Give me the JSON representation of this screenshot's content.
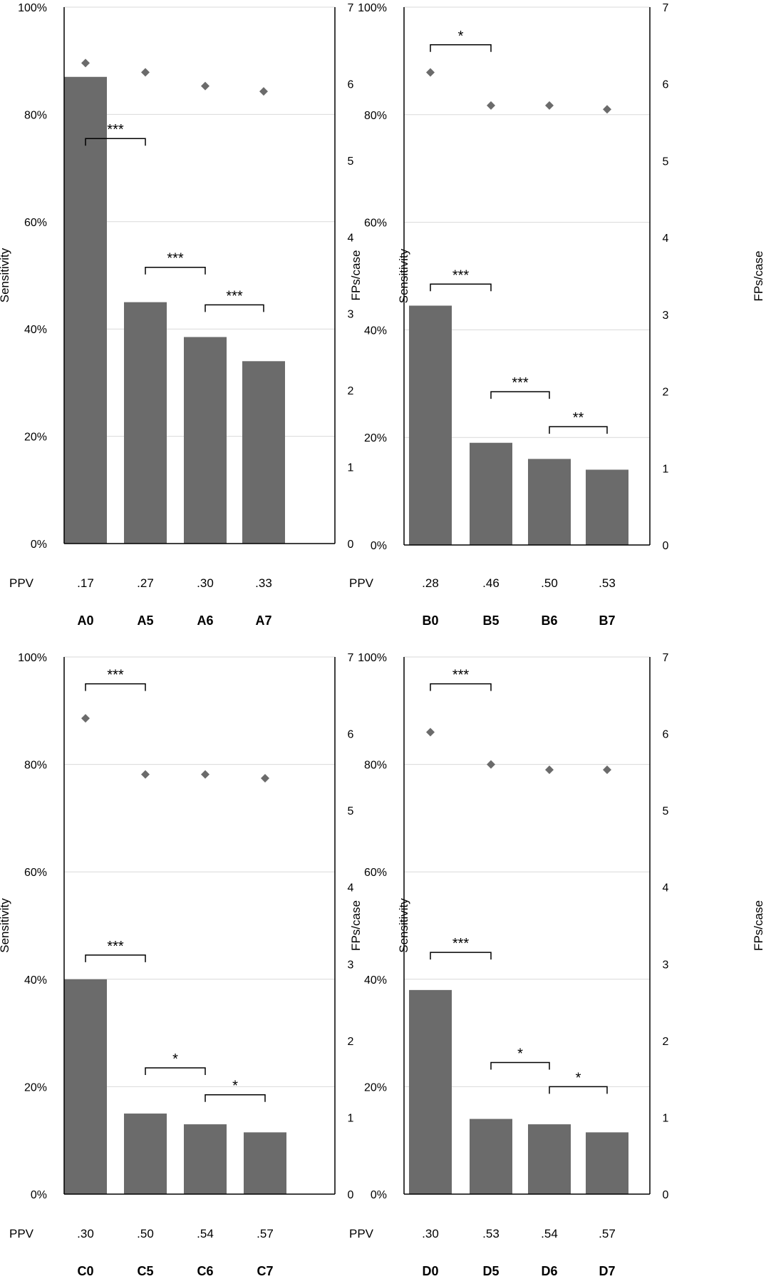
{
  "colors": {
    "bar": "#6b6b6b",
    "marker": "#6b6b6b",
    "grid": "#d9d9d9",
    "axis": "#000000",
    "text": "#000000"
  },
  "chart_data": [
    {
      "type": "bar",
      "panel": "A",
      "categories": [
        "A0",
        "A5",
        "A6",
        "A7"
      ],
      "series": [
        {
          "name": "Sensitivity",
          "chart": "bar",
          "axis": "left",
          "values": [
            87,
            45,
            38.5,
            34
          ]
        },
        {
          "name": "FPs/case",
          "chart": "scatter",
          "axis": "right",
          "values": [
            6.27,
            6.15,
            5.97,
            5.9
          ]
        }
      ],
      "ylabel": "Sensitivity",
      "ylabel_right": "FPs/case",
      "ylim": [
        0,
        100
      ],
      "ylim_right": [
        0,
        7
      ],
      "yticks": [
        "0%",
        "20%",
        "40%",
        "60%",
        "80%",
        "100%"
      ],
      "yticks_right": [
        "0",
        "1",
        "2",
        "3",
        "4",
        "5",
        "6",
        "7"
      ],
      "grid": true,
      "ppv_label": "PPV",
      "ppv": [
        ".17",
        ".27",
        ".30",
        ".33"
      ],
      "significance": [
        {
          "from": 0,
          "to": 1,
          "label": "***",
          "level_pct": 75.5
        },
        {
          "from": 1,
          "to": 2,
          "label": "***",
          "level_pct": 51.5
        },
        {
          "from": 2,
          "to": 3,
          "label": "***",
          "level_pct": 44.5
        }
      ]
    },
    {
      "type": "bar",
      "panel": "B",
      "categories": [
        "B0",
        "B5",
        "B6",
        "B7"
      ],
      "series": [
        {
          "name": "Sensitivity",
          "chart": "bar",
          "axis": "left",
          "values": [
            44.5,
            19,
            16,
            14
          ]
        },
        {
          "name": "FPs/case",
          "chart": "scatter",
          "axis": "right",
          "values": [
            6.15,
            5.72,
            5.72,
            5.67
          ]
        }
      ],
      "ylabel": "Sensitivity",
      "ylabel_right": "FPs/case",
      "ylim": [
        0,
        100
      ],
      "ylim_right": [
        0,
        7
      ],
      "yticks": [
        "0%",
        "20%",
        "40%",
        "60%",
        "80%",
        "100%"
      ],
      "yticks_right": [
        "0",
        "1",
        "2",
        "3",
        "4",
        "5",
        "6",
        "7"
      ],
      "grid": true,
      "ppv_label": "PPV",
      "ppv": [
        ".28",
        ".46",
        ".50",
        ".53"
      ],
      "significance": [
        {
          "from": 0,
          "to": 1,
          "label": "*",
          "level_pct": 93
        },
        {
          "from": 0,
          "to": 1,
          "label": "***",
          "level_pct": 48.5
        },
        {
          "from": 1,
          "to": 2,
          "label": "***",
          "level_pct": 28.5
        },
        {
          "from": 2,
          "to": 3,
          "label": "**",
          "level_pct": 22
        }
      ]
    },
    {
      "type": "bar",
      "panel": "C",
      "categories": [
        "C0",
        "C5",
        "C6",
        "C7"
      ],
      "series": [
        {
          "name": "Sensitivity",
          "chart": "bar",
          "axis": "left",
          "values": [
            40,
            15,
            13,
            11.5
          ]
        },
        {
          "name": "FPs/case",
          "chart": "scatter",
          "axis": "right",
          "values": [
            6.2,
            5.47,
            5.47,
            5.42
          ]
        }
      ],
      "ylabel": "Sensitivity",
      "ylabel_right": "FPs/case",
      "ylim": [
        0,
        100
      ],
      "ylim_right": [
        0,
        7
      ],
      "yticks": [
        "0%",
        "20%",
        "40%",
        "60%",
        "80%",
        "100%"
      ],
      "yticks_right": [
        "0",
        "1",
        "2",
        "3",
        "4",
        "5",
        "6",
        "7"
      ],
      "grid": true,
      "ppv_label": "PPV",
      "ppv": [
        ".30",
        ".50",
        ".54",
        ".57"
      ],
      "significance": [
        {
          "from": 0,
          "to": 1,
          "label": "***",
          "level_pct": 95
        },
        {
          "from": 0,
          "to": 1,
          "label": "***",
          "level_pct": 44.5
        },
        {
          "from": 1,
          "to": 2,
          "label": "*",
          "level_pct": 23.5
        },
        {
          "from": 2,
          "to": 3,
          "label": "*",
          "level_pct": 18.5
        }
      ]
    },
    {
      "type": "bar",
      "panel": "D",
      "categories": [
        "D0",
        "D5",
        "D6",
        "D7"
      ],
      "series": [
        {
          "name": "Sensitivity",
          "chart": "bar",
          "axis": "left",
          "values": [
            38,
            14,
            13,
            11.5
          ]
        },
        {
          "name": "FPs/case",
          "chart": "scatter",
          "axis": "right",
          "values": [
            6.02,
            5.6,
            5.53,
            5.53
          ]
        }
      ],
      "ylabel": "Sensitivity",
      "ylabel_right": "FPs/case",
      "ylim": [
        0,
        100
      ],
      "ylim_right": [
        0,
        7
      ],
      "yticks": [
        "0%",
        "20%",
        "40%",
        "60%",
        "80%",
        "100%"
      ],
      "yticks_right": [
        "0",
        "1",
        "2",
        "3",
        "4",
        "5",
        "6",
        "7"
      ],
      "grid": true,
      "ppv_label": "PPV",
      "ppv": [
        ".30",
        ".53",
        ".54",
        ".57"
      ],
      "significance": [
        {
          "from": 0,
          "to": 1,
          "label": "***",
          "level_pct": 95
        },
        {
          "from": 0,
          "to": 1,
          "label": "***",
          "level_pct": 45
        },
        {
          "from": 1,
          "to": 2,
          "label": "*",
          "level_pct": 24.5
        },
        {
          "from": 2,
          "to": 3,
          "label": "*",
          "level_pct": 20
        }
      ]
    }
  ]
}
